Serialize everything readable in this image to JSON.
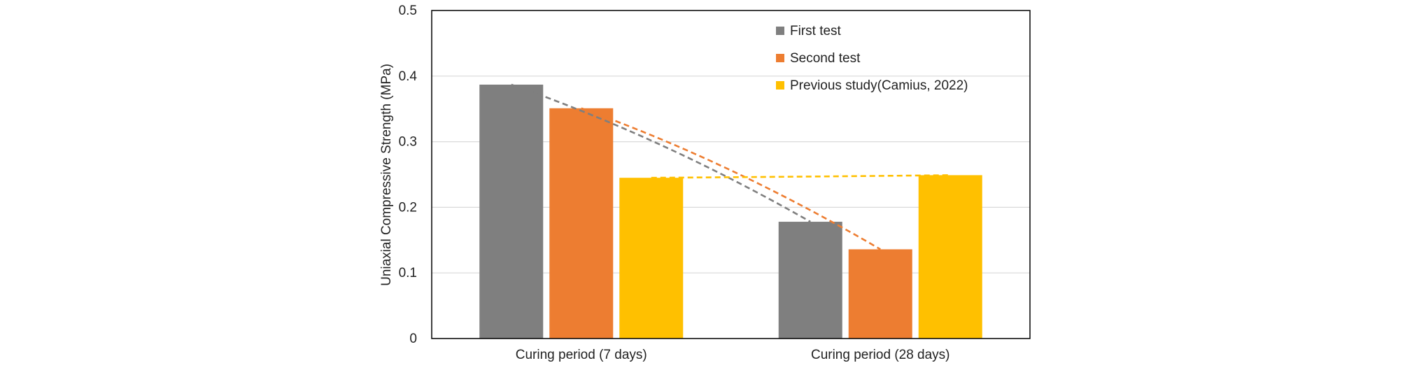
{
  "chart_data": {
    "type": "bar",
    "title": "",
    "xlabel": "",
    "ylabel": "Uniaxial Compressive Strength (MPa)",
    "ylim": [
      0,
      0.5
    ],
    "yticks": [
      "0",
      "0.1",
      "0.2",
      "0.3",
      "0.4",
      "0.5"
    ],
    "categories": [
      "Curing period (7 days)",
      "Curing period (28 days)"
    ],
    "series": [
      {
        "name": "First test",
        "values": [
          0.387,
          0.178
        ],
        "color": "#7f7f7f"
      },
      {
        "name": "Second test",
        "values": [
          0.351,
          0.136
        ],
        "color": "#ed7d31"
      },
      {
        "name": "Previous study(Camius, 2022)",
        "values": [
          0.245,
          0.249
        ],
        "color": "#ffc000"
      }
    ],
    "trendlines": [
      {
        "series": "First test",
        "style": "dashed",
        "color": "#7f7f7f"
      },
      {
        "series": "Second test",
        "style": "dashed",
        "color": "#ed7d31"
      },
      {
        "series": "Previous study(Camius, 2022)",
        "style": "dashed",
        "color": "#ffc000"
      }
    ],
    "grid": true,
    "legend_position": "top-right-inside"
  }
}
